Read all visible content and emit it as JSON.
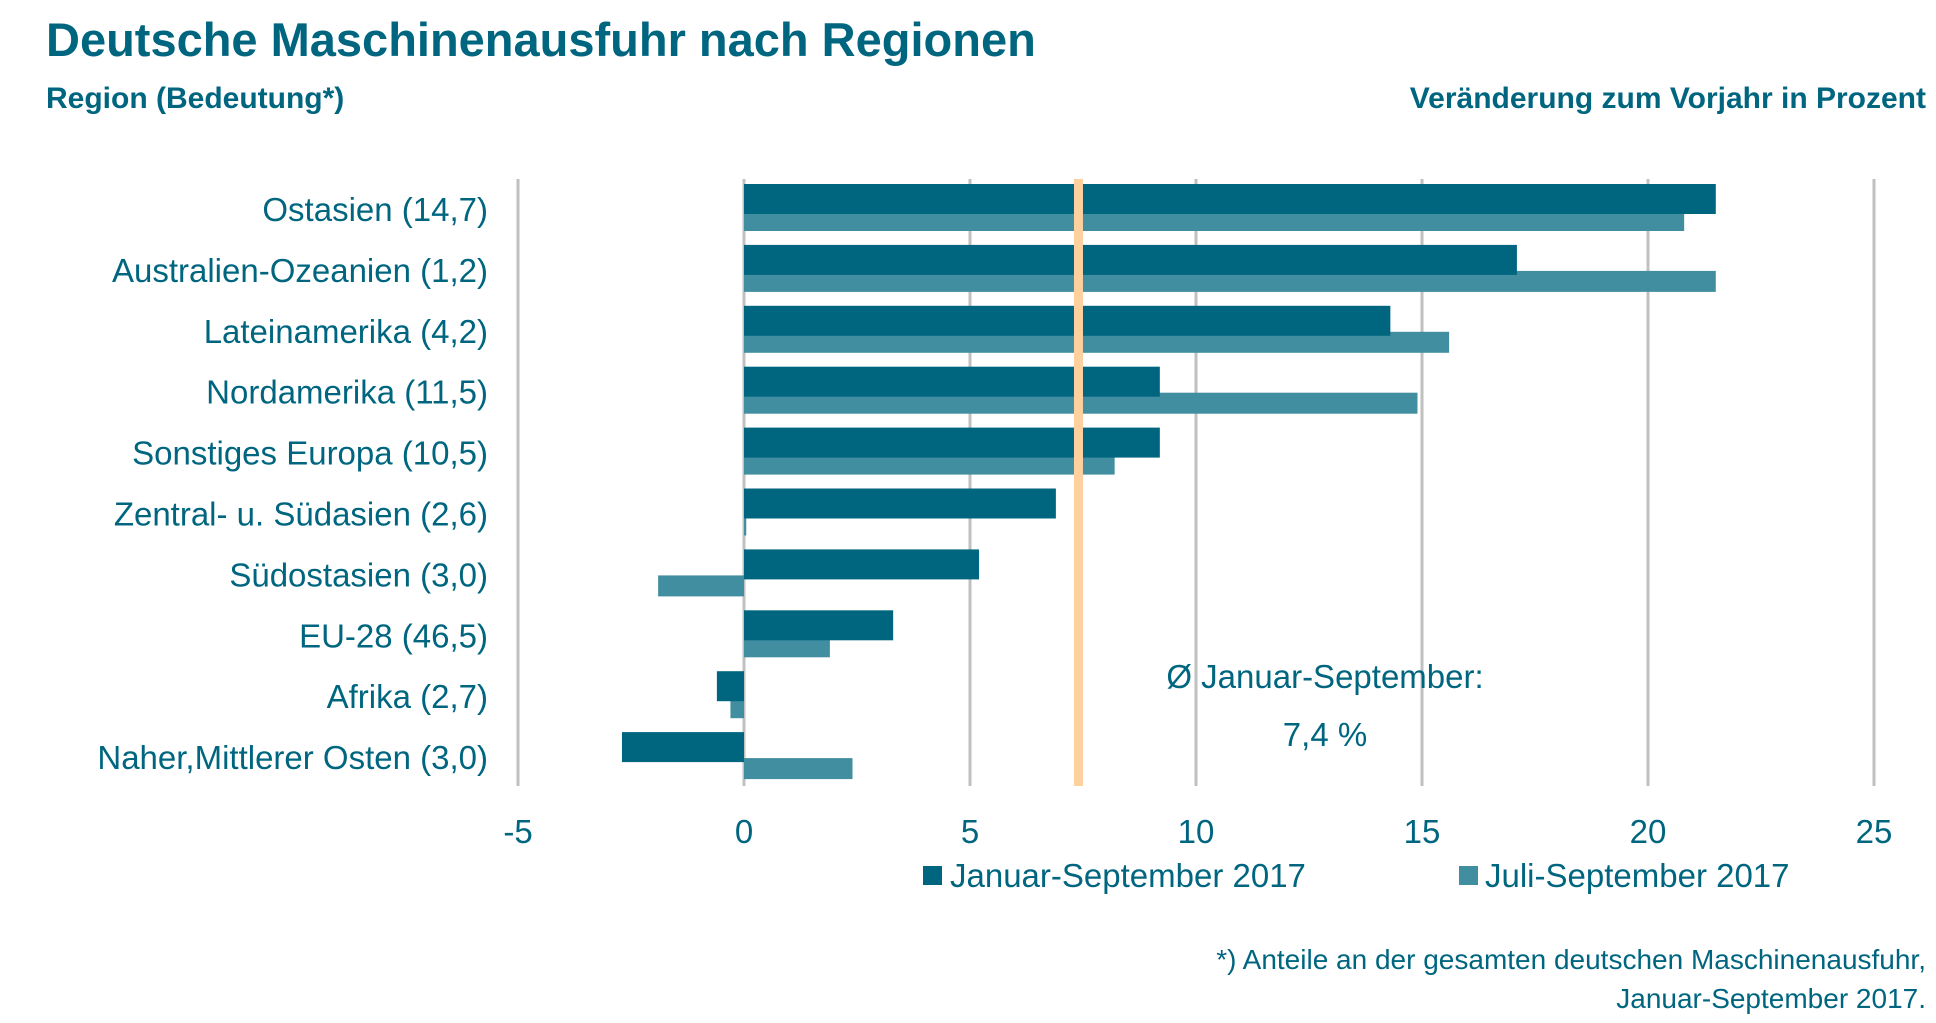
{
  "chart_data": {
    "type": "bar",
    "orientation": "horizontal",
    "title": "Deutsche Maschinenausfuhr nach Regionen",
    "ylabel": "Region (Bedeutung*)",
    "xlabel": "Veränderung zum Vorjahr in Prozent",
    "categories": [
      "Ostasien (14,7)",
      "Australien-Ozeanien (1,2)",
      "Lateinamerika (4,2)",
      "Nordamerika (11,5)",
      "Sonstiges Europa (10,5)",
      "Zentral- u. Südasien (2,6)",
      "Südostasien (3,0)",
      "EU-28 (46,5)",
      "Afrika (2,7)",
      "Naher,Mittlerer Osten (3,0)"
    ],
    "series": [
      {
        "name": "Januar-September 2017",
        "color": "#006680",
        "values": [
          21.5,
          17.1,
          14.3,
          9.2,
          9.2,
          6.9,
          5.2,
          3.3,
          -0.6,
          -2.7
        ]
      },
      {
        "name": "Juli-September 2017",
        "color": "#428ea1",
        "values": [
          20.8,
          21.5,
          15.6,
          14.9,
          8.2,
          0.05,
          -1.9,
          1.9,
          -0.3,
          2.4
        ]
      }
    ],
    "xlim": [
      -5,
      25
    ],
    "xticks": [
      "-5",
      "0",
      "5",
      "10",
      "15",
      "20",
      "25"
    ],
    "xtick_values": [
      -5,
      0,
      5,
      10,
      15,
      20,
      25
    ],
    "grid": true,
    "legend_position": "bottom",
    "reference_line": {
      "value": 7.4,
      "color": "#fdd09e",
      "label_line1": "Ø Januar-September:",
      "label_line2": "7,4 %",
      "label_color": "#f39200"
    },
    "footnote_line1": "*) Anteile an der gesamten deutschen Maschinenausfuhr,",
    "footnote_line2": "Januar-September 2017."
  }
}
